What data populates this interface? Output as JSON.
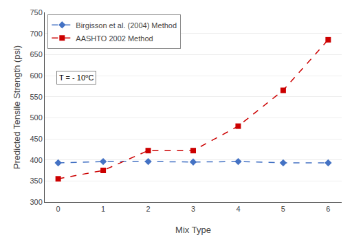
{
  "chart_data": {
    "type": "line",
    "x": [
      0,
      1,
      2,
      3,
      4,
      5,
      6
    ],
    "series": [
      {
        "name": "Birgisson et al. (2004) Method",
        "color": "#4472c4",
        "marker": "diamond",
        "line_style": "dashed",
        "values": [
          393,
          396,
          396,
          395,
          396,
          393,
          393
        ]
      },
      {
        "name": "AASHTO 2002 Method",
        "color": "#cc0000",
        "marker": "square",
        "line_style": "dashed",
        "values": [
          355,
          375,
          422,
          422,
          480,
          565,
          685
        ]
      }
    ],
    "x_label": "Mix Type",
    "y_label": "Predicted Tensile Strength (psi)",
    "xlim": [
      -0.3,
      6.3
    ],
    "ylim": [
      300,
      750
    ],
    "xticks": [
      0,
      1,
      2,
      3,
      4,
      5,
      6
    ],
    "yticks": [
      300,
      350,
      400,
      450,
      500,
      550,
      600,
      650,
      700,
      750
    ],
    "grid": "y",
    "legend": "upper left",
    "annotation": "T = - 10⁰C"
  }
}
